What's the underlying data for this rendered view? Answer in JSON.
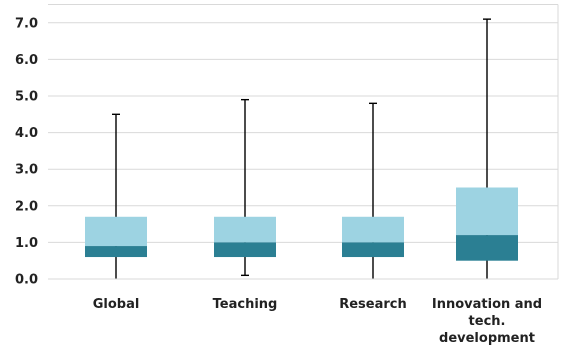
{
  "chart_data": {
    "type": "boxplot",
    "categories": [
      [
        "Global"
      ],
      [
        "Teaching"
      ],
      [
        "Research"
      ],
      [
        "Innovation and",
        "tech.",
        "development"
      ]
    ],
    "series": [
      {
        "category": "Global",
        "min": 0.0,
        "q1": 0.6,
        "median": 0.9,
        "q3": 1.7,
        "max": 4.5
      },
      {
        "category": "Teaching",
        "min": 0.1,
        "q1": 0.6,
        "median": 1.0,
        "q3": 1.7,
        "max": 4.9
      },
      {
        "category": "Research",
        "min": 0.0,
        "q1": 0.6,
        "median": 1.0,
        "q3": 1.7,
        "max": 4.8
      },
      {
        "category": "Innovation and tech. development",
        "min": 0.0,
        "q1": 0.5,
        "median": 1.2,
        "q3": 2.5,
        "max": 7.1
      }
    ],
    "yticks": [
      "0.0",
      "1.0",
      "2.0",
      "3.0",
      "4.0",
      "5.0",
      "6.0",
      "7.0"
    ],
    "ylim": [
      0,
      7.5
    ],
    "grid": true,
    "legend": "none",
    "colors": {
      "upper_box": "#9dd3e2",
      "lower_box": "#2b7f93",
      "whisker": "#000000",
      "grid": "#d9d9d9",
      "text": "#222222"
    }
  }
}
